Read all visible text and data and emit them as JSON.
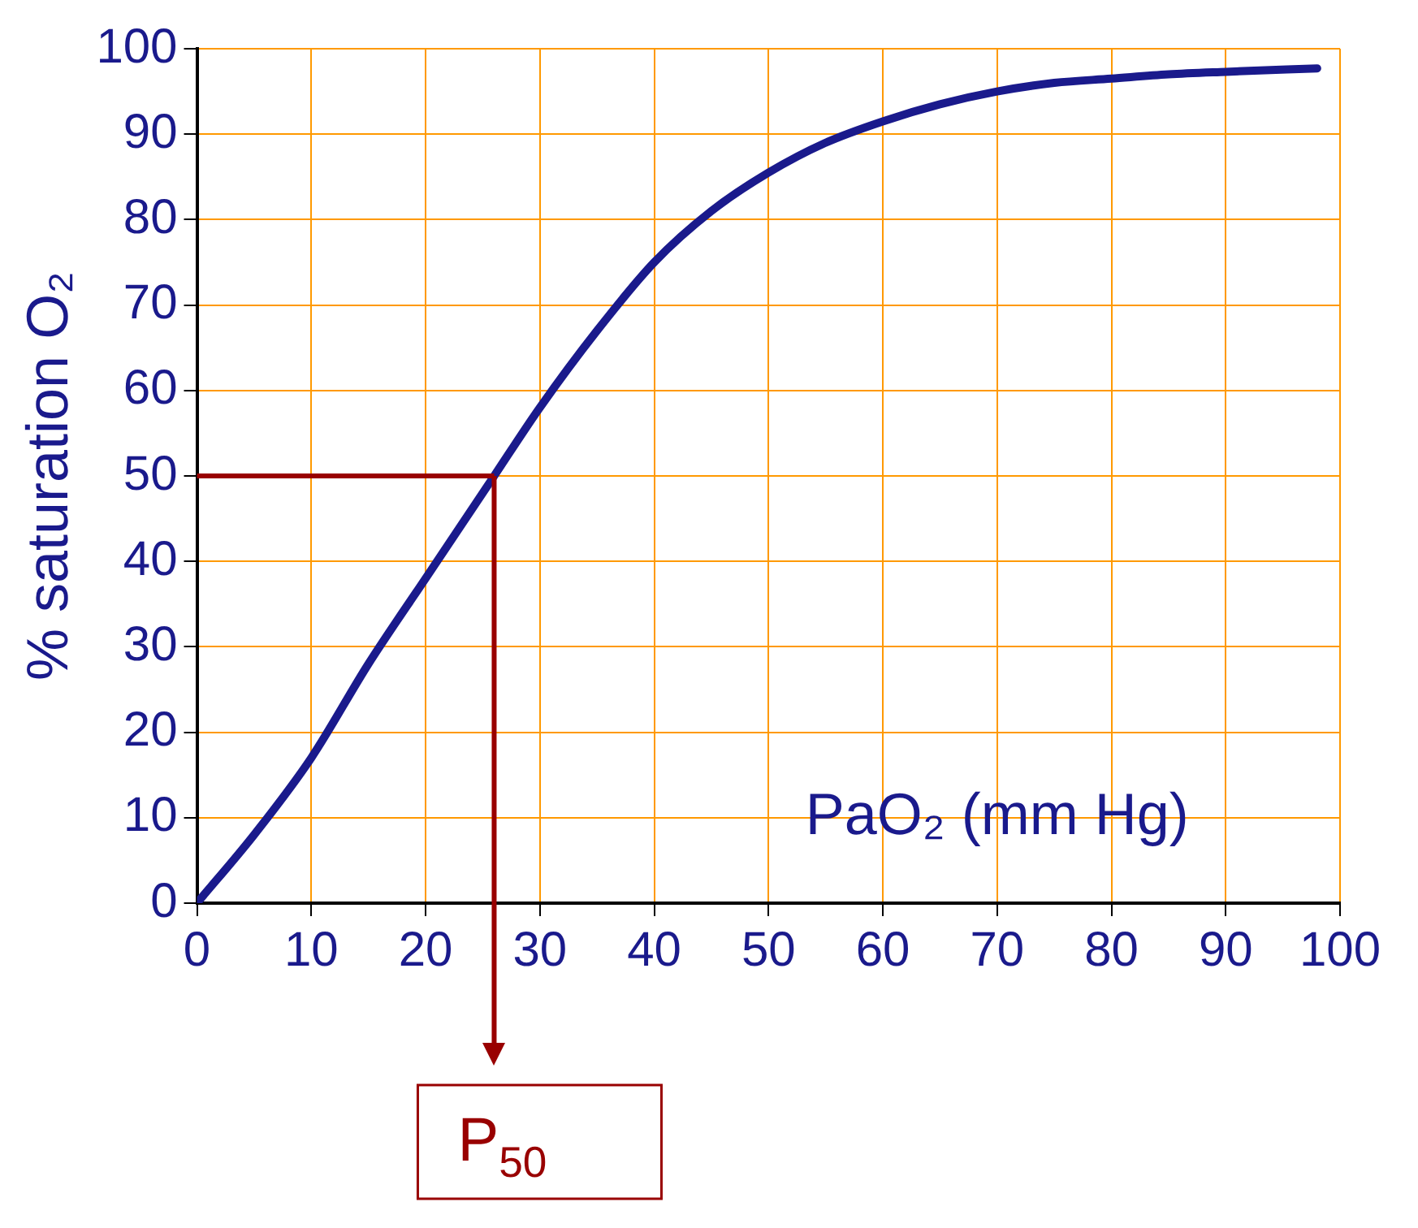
{
  "chart_data": {
    "type": "line",
    "xlabel": "PaO₂ (mm Hg)",
    "ylabel": "% saturation O₂",
    "x": [
      0,
      5,
      10,
      15,
      20,
      26,
      30,
      35,
      40,
      45,
      50,
      55,
      60,
      65,
      70,
      75,
      80,
      85,
      90,
      98
    ],
    "series": [
      {
        "color": "#1a1a8c",
        "values": [
          0,
          8,
          17,
          28,
          38,
          50,
          58,
          67,
          75,
          81,
          85.5,
          89,
          91.5,
          93.5,
          95,
          96,
          96.5,
          97,
          97.3,
          97.7
        ]
      }
    ],
    "xlim": [
      0,
      100
    ],
    "xticks": [
      0,
      10,
      20,
      30,
      40,
      50,
      60,
      70,
      80,
      90,
      100
    ],
    "ylim": [
      0,
      100
    ],
    "yticks": [
      0,
      10,
      20,
      30,
      40,
      50,
      60,
      70,
      80,
      90,
      100
    ],
    "grid": true,
    "legend": false,
    "marker": "none",
    "line_style": "solid",
    "ref_lines": [
      {
        "axis": "y",
        "value": 50,
        "color": "#990000"
      },
      {
        "axis": "x",
        "value": 26,
        "label": "P$_{50}$",
        "color": "#990000"
      }
    ]
  }
}
